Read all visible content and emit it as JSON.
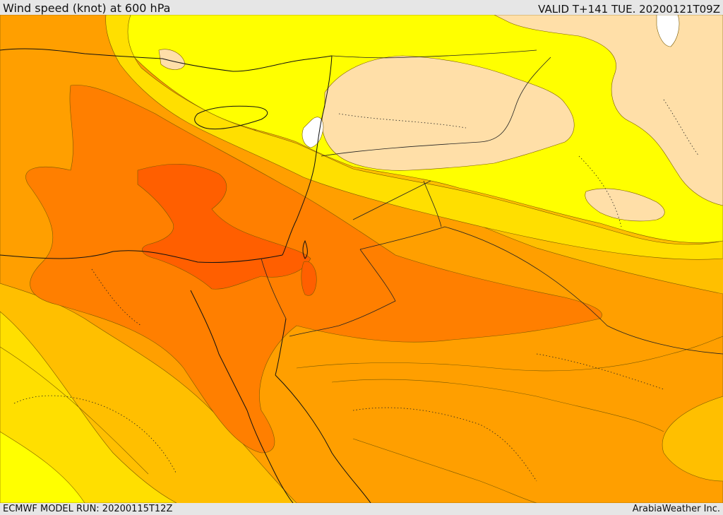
{
  "header": {
    "title": "Wind speed (knot) at 600 hPa",
    "valid": "VALID T+141 TUE. 20200121T09Z"
  },
  "footer": {
    "model_run": "ECMWF MODEL RUN: 20200115T12Z",
    "credit": "ArabiaWeather Inc."
  },
  "map": {
    "field": "wind-speed-600hpa",
    "region": "eastern-mediterranean-middle-east",
    "palette": {
      "calm": "#ffffff",
      "very_low": "#ffdfa8",
      "low": "#ffff00",
      "low_mid": "#ffdf00",
      "mid": "#ffbf00",
      "mid_high": "#ff9f00",
      "high": "#ff7f00",
      "very_high": "#ff5f00"
    }
  }
}
